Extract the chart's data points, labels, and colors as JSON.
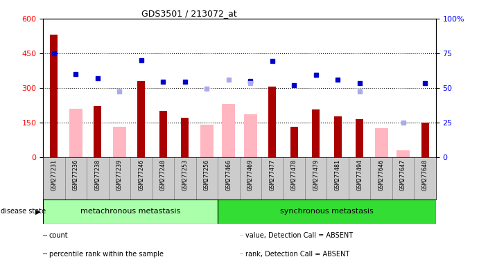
{
  "title": "GDS3501 / 213072_at",
  "samples": [
    "GSM277231",
    "GSM277236",
    "GSM277238",
    "GSM277239",
    "GSM277246",
    "GSM277248",
    "GSM277253",
    "GSM277256",
    "GSM277466",
    "GSM277469",
    "GSM277477",
    "GSM277478",
    "GSM277479",
    "GSM277481",
    "GSM277494",
    "GSM277646",
    "GSM277647",
    "GSM277648"
  ],
  "count_values": [
    530,
    0,
    220,
    0,
    330,
    200,
    170,
    0,
    0,
    0,
    305,
    130,
    205,
    175,
    165,
    0,
    0,
    150
  ],
  "absent_value_bars": [
    0,
    210,
    0,
    130,
    0,
    0,
    0,
    140,
    230,
    185,
    0,
    0,
    0,
    0,
    0,
    125,
    30,
    0
  ],
  "percentile_rank_left": [
    450,
    360,
    340,
    0,
    420,
    325,
    325,
    0,
    0,
    330,
    415,
    310,
    355,
    335,
    320,
    0,
    0,
    320
  ],
  "absent_rank_left": [
    0,
    0,
    0,
    285,
    0,
    0,
    0,
    295,
    335,
    320,
    0,
    0,
    0,
    0,
    285,
    0,
    150,
    0
  ],
  "group1_count": 8,
  "group1_label": "metachronous metastasis",
  "group2_label": "synchronous metastasis",
  "ylim_left": [
    0,
    600
  ],
  "yticks_left": [
    0,
    150,
    300,
    450,
    600
  ],
  "yticks_right_labels": [
    "0",
    "25",
    "50",
    "75",
    "100%"
  ],
  "yticks_right_vals": [
    0,
    25,
    50,
    75,
    100
  ],
  "bar_color_dark_red": "#AA0000",
  "bar_color_pink": "#FFB6C1",
  "dot_color_blue": "#0000CC",
  "dot_color_light_blue": "#AAAAEE",
  "group_color1": "#AAFFAA",
  "group_color2": "#33DD33",
  "xtick_bg": "#CCCCCC",
  "legend_items": [
    {
      "label": "count",
      "color": "#AA0000",
      "type": "square"
    },
    {
      "label": "percentile rank within the sample",
      "color": "#0000CC",
      "type": "square"
    },
    {
      "label": "value, Detection Call = ABSENT",
      "color": "#FFB6C1",
      "type": "square"
    },
    {
      "label": "rank, Detection Call = ABSENT",
      "color": "#AAAAEE",
      "type": "square"
    }
  ]
}
